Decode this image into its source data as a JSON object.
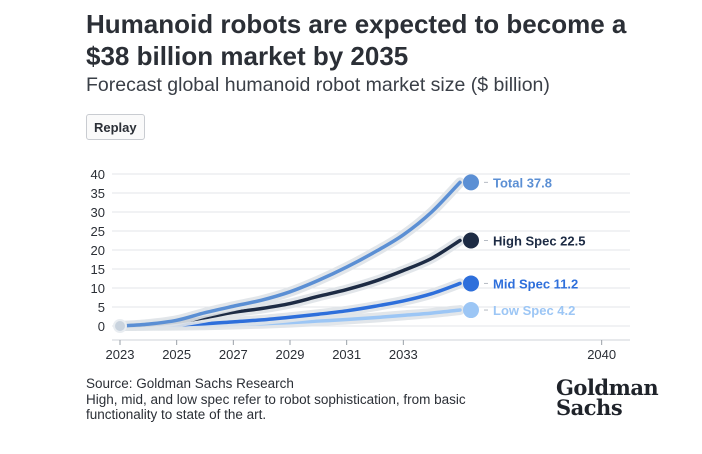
{
  "header": {
    "title": "Humanoid robots are expected to become a $38 billion market by 2035",
    "subtitle": "Forecast global humanoid robot market size ($ billion)",
    "replay_label": "Replay"
  },
  "footer": {
    "source": "Source: Goldman Sachs Research",
    "note": "High, mid, and low spec refer to robot sophistication, from basic functionality to state of the art.",
    "logo_line1": "Goldman",
    "logo_line2": "Sachs"
  },
  "chart_data": {
    "type": "line",
    "title": "Forecast global humanoid robot market size ($ billion)",
    "xlabel": "",
    "ylabel": "",
    "xlim": [
      2023,
      2041
    ],
    "ylim": [
      0,
      40
    ],
    "xticks": [
      2023,
      2025,
      2027,
      2029,
      2031,
      2033,
      2040
    ],
    "yticks": [
      0,
      5,
      10,
      15,
      20,
      25,
      30,
      35,
      40
    ],
    "grid": true,
    "x": [
      2023,
      2024,
      2025,
      2026,
      2027,
      2028,
      2029,
      2030,
      2031,
      2032,
      2033,
      2034,
      2035
    ],
    "series": [
      {
        "name": "Total",
        "label": "Total 37.8",
        "color": "#5b8fd4",
        "end_value": 37.8,
        "values": [
          0,
          0.5,
          1.5,
          3.5,
          5.2,
          6.8,
          9,
          12,
          15.5,
          19.5,
          24,
          30,
          37.8
        ]
      },
      {
        "name": "High Spec",
        "label": "High Spec 22.5",
        "color": "#1d2b44",
        "end_value": 22.5,
        "values": [
          0,
          0.3,
          1.0,
          2.2,
          3.6,
          4.6,
          5.9,
          7.8,
          9.6,
          11.8,
          14.6,
          17.8,
          22.5
        ]
      },
      {
        "name": "Mid Spec",
        "label": "Mid Spec 11.2",
        "color": "#2e6fdb",
        "end_value": 11.2,
        "values": [
          0,
          0.1,
          0.3,
          0.6,
          1.1,
          1.6,
          2.3,
          3.1,
          4.0,
          5.2,
          6.6,
          8.5,
          11.2
        ]
      },
      {
        "name": "Low Spec",
        "label": "Low Spec 4.2",
        "color": "#9cc6f5",
        "end_value": 4.2,
        "values": [
          0,
          0.05,
          0.1,
          0.2,
          0.4,
          0.6,
          0.9,
          1.3,
          1.7,
          2.2,
          2.8,
          3.4,
          4.2
        ]
      }
    ],
    "start_marker": {
      "x": 2023,
      "value": 0
    }
  }
}
